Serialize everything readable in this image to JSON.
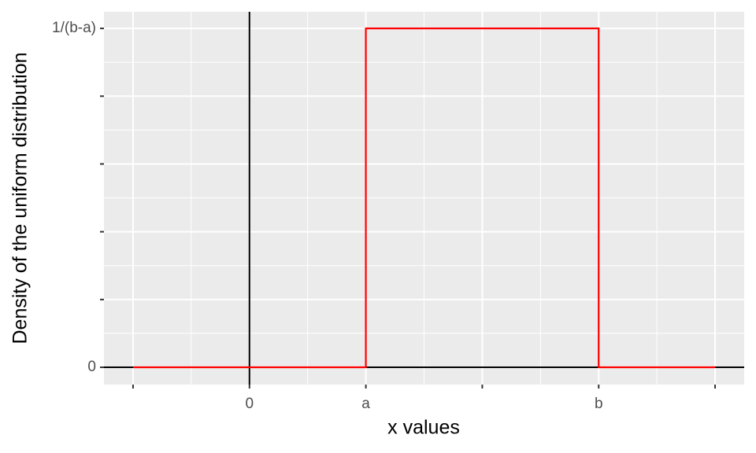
{
  "chart_data": {
    "type": "line",
    "x_label": "x values",
    "y_label": "Density of the uniform distribution",
    "series": [
      {
        "color": "#ff0000",
        "x": [
          -1,
          1,
          1,
          3,
          3,
          4
        ],
        "values": [
          0,
          0,
          0.5,
          0.5,
          0,
          0
        ]
      }
    ],
    "xlim": [
      -1.25,
      4.25
    ],
    "xticks": [
      {
        "value": -1,
        "label": null
      },
      0,
      {
        "value": 1,
        "label": "a"
      },
      {
        "value": 2,
        "label": null
      },
      {
        "value": 3,
        "label": "b"
      },
      {
        "value": 4,
        "label": null
      }
    ],
    "ylim": [
      -0.0255,
      0.5245
    ],
    "yticks": [
      0,
      {
        "value": 0.1,
        "label": null
      },
      {
        "value": 0.2,
        "label": null
      },
      {
        "value": 0.3,
        "label": null
      },
      {
        "value": 0.4,
        "label": null
      },
      {
        "value": 0.5,
        "label": "1/(b-a)"
      }
    ],
    "hline": 0,
    "vline": 0,
    "grid": true
  }
}
